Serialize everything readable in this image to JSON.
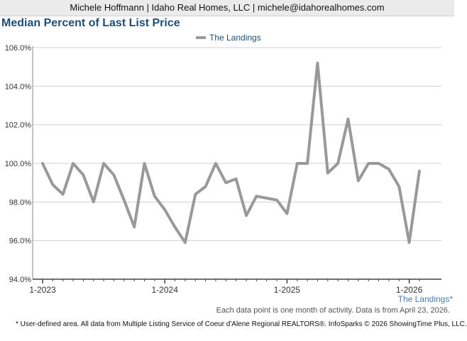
{
  "header": {
    "text": "Michele Hoffmann | Idaho Real Homes, LLC | michele@idahorealhomes.com"
  },
  "chart_data": {
    "type": "line",
    "title": "Median Percent of Last List Price",
    "xlabel": "",
    "ylabel": "",
    "ylim": [
      94.0,
      106.0
    ],
    "y_ticks": [
      94.0,
      96.0,
      98.0,
      100.0,
      102.0,
      104.0,
      106.0
    ],
    "y_tick_labels": [
      "94.0%",
      "96.0%",
      "98.0%",
      "100.0%",
      "102.0%",
      "104.0%",
      "106.0%"
    ],
    "x_tick_labels": [
      "1-2023",
      "1-2024",
      "1-2025",
      "1-2026"
    ],
    "x_tick_month_index": [
      0,
      12,
      24,
      36
    ],
    "legend": {
      "position": "top-center",
      "entries": [
        "The Landings"
      ]
    },
    "grid": true,
    "series": [
      {
        "name": "The Landings",
        "color": "#999999",
        "values": [
          100.0,
          98.9,
          98.4,
          100.0,
          99.4,
          98.0,
          100.0,
          99.4,
          98.1,
          96.7,
          100.0,
          98.3,
          97.6,
          96.7,
          95.9,
          98.4,
          98.8,
          100.0,
          99.0,
          99.2,
          97.3,
          98.3,
          98.2,
          98.1,
          97.4,
          100.0,
          100.0,
          105.2,
          99.5,
          100.0,
          102.3,
          99.1,
          100.0,
          100.0,
          99.7,
          98.8,
          95.9,
          99.6
        ]
      }
    ]
  },
  "series_label": "The Landings*",
  "footnote": "Each data point is one month of activity. Data is from April 23, 2026.",
  "disclaimer": "* User-defined area. All data from Multiple Listing Service of Coeur d'Alene Regional REALTORS®. InfoSparks © 2026 ShowingTime Plus, LLC."
}
